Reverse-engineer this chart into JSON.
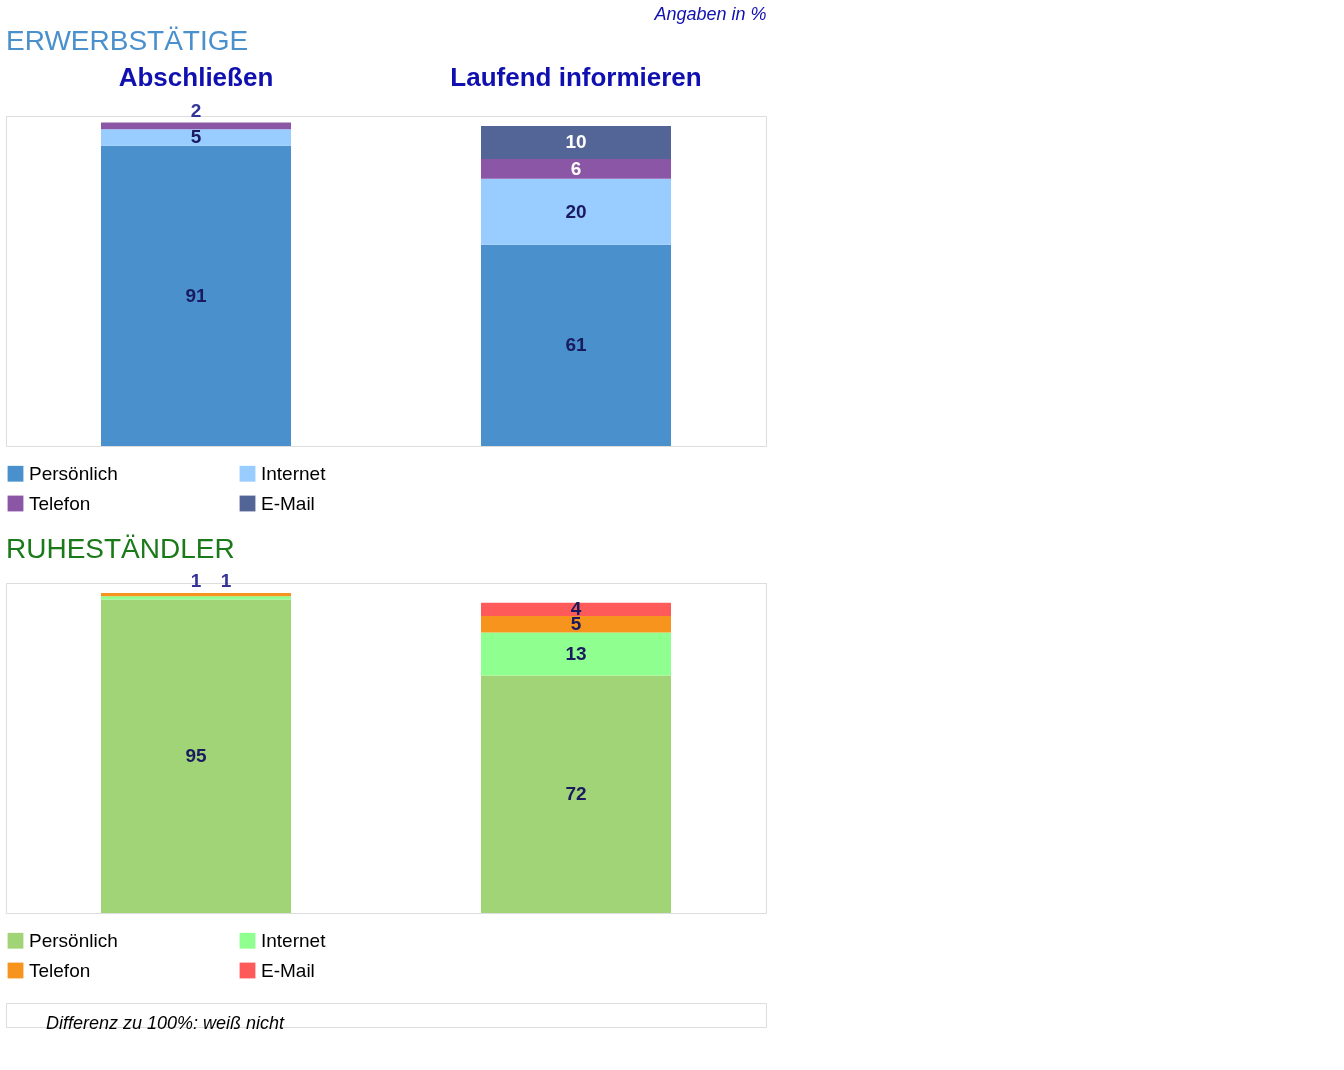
{
  "chart_data": [
    {
      "type": "bar",
      "stacked": true,
      "title": "ERWERBSTÄTIGE",
      "categories": [
        "Abschließen",
        "Laufend informieren"
      ],
      "ylim": [
        0,
        100
      ],
      "tick_labels": "x",
      "data_labels": true,
      "legend": "bottom",
      "annotations": [
        "Angaben in %"
      ],
      "series": [
        {
          "name": "Persönlich",
          "color": "#4a90cc",
          "values": [
            91,
            61
          ]
        },
        {
          "name": "Internet",
          "color": "#99ccff",
          "values": [
            5,
            20
          ]
        },
        {
          "name": "Telefon",
          "color": "#8c56a6",
          "values": [
            2,
            6
          ]
        },
        {
          "name": "E-Mail",
          "color": "#536497",
          "values": [
            null,
            10
          ]
        }
      ]
    },
    {
      "type": "bar",
      "stacked": true,
      "title": "RUHESTÄNDLER",
      "categories": [
        null,
        null
      ],
      "ylim": [
        0,
        100
      ],
      "tick_labels": false,
      "data_labels": true,
      "legend": "bottom",
      "annotations": [
        "Differenz zu 100%: weiß nicht"
      ],
      "series": [
        {
          "name": "Persönlich",
          "color": "#a1d476",
          "values": [
            95,
            72
          ]
        },
        {
          "name": "Internet",
          "color": "#8fff8f",
          "values": [
            1,
            13
          ]
        },
        {
          "name": "Telefon",
          "color": "#f7941d",
          "values": [
            1,
            5
          ]
        },
        {
          "name": "E-Mail",
          "color": "#ff5a5a",
          "values": [
            null,
            4
          ]
        }
      ]
    }
  ]
}
